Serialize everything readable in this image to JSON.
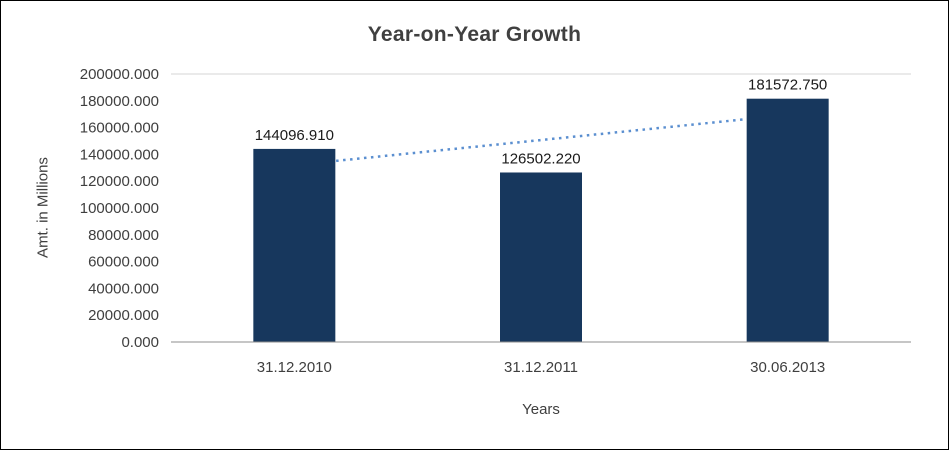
{
  "chart_data": {
    "type": "bar",
    "title": "Year-on-Year Growth",
    "xlabel": "Years",
    "ylabel": "Amt. in Millions",
    "categories": [
      "31.12.2010",
      "31.12.2011",
      "30.06.2013"
    ],
    "values": [
      144096.91,
      126502.22,
      181572.75
    ],
    "data_labels": [
      "144096.910",
      "126502.220",
      "181572.750"
    ],
    "ylim": [
      0,
      200000
    ],
    "ytick_step": 20000,
    "ytick_labels": [
      "0.000",
      "20000.000",
      "40000.000",
      "60000.000",
      "80000.000",
      "100000.000",
      "120000.000",
      "140000.000",
      "160000.000",
      "180000.000",
      "200000.000"
    ],
    "legend": "none",
    "grid": "top-gridline-only",
    "trendline": {
      "style": "dotted",
      "start_value": 131986.0,
      "end_value": 169462.0
    },
    "colors": {
      "bar": "#17375D",
      "trendline": "#5B8FD0",
      "gridline": "#D6D6D6",
      "axis_line": "#8C8C8C",
      "tick_label": "#3F3F3F",
      "data_label": "#1A1A1A",
      "title": "#404040"
    }
  }
}
